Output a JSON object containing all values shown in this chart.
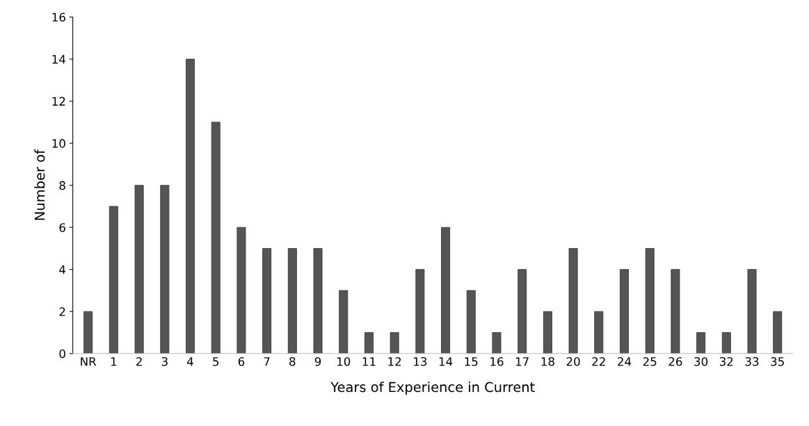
{
  "chart_data": {
    "type": "bar",
    "xlabel": "Years of Experience in Current",
    "ylabel": "Number of",
    "categories": [
      "NR",
      "1",
      "2",
      "3",
      "4",
      "5",
      "6",
      "7",
      "8",
      "9",
      "10",
      "11",
      "12",
      "13",
      "14",
      "15",
      "16",
      "17",
      "18",
      "20",
      "22",
      "24",
      "25",
      "26",
      "30",
      "32",
      "33",
      "35"
    ],
    "values": [
      2,
      7,
      8,
      8,
      14,
      11,
      6,
      5,
      5,
      5,
      3,
      1,
      1,
      4,
      6,
      3,
      1,
      4,
      2,
      5,
      2,
      4,
      5,
      4,
      1,
      1,
      4,
      2
    ],
    "color": "#555555",
    "ylim": [
      0,
      16
    ],
    "yticks": [
      0,
      2,
      4,
      6,
      8,
      10,
      12,
      14,
      16
    ],
    "grid": false,
    "legend": false
  }
}
